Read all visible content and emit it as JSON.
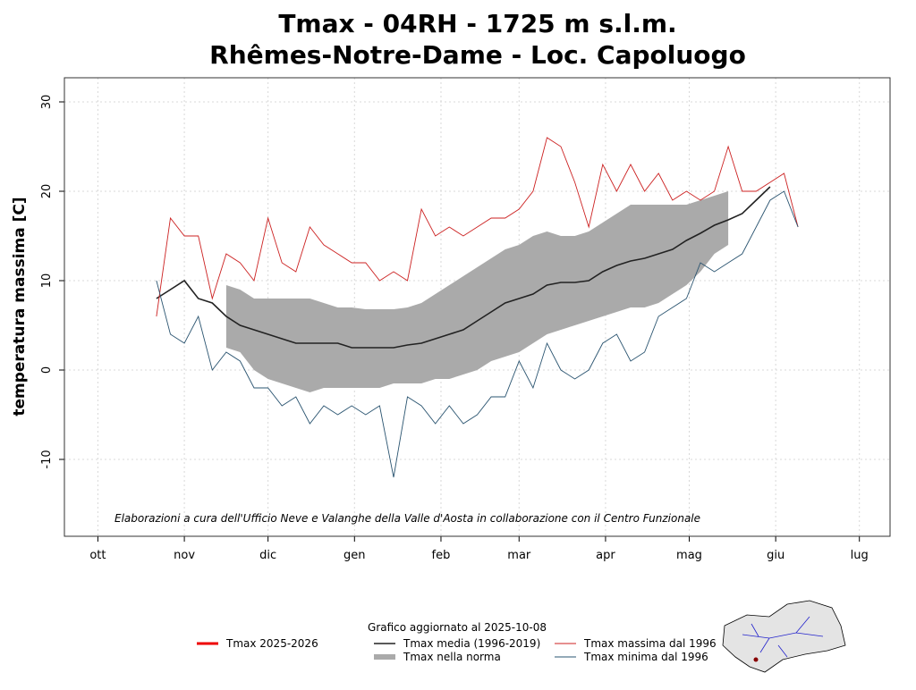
{
  "chart_data": {
    "type": "line",
    "title": "Tmax - 04RH - 1725 m s.l.m.",
    "subtitle": "Rhêmes-Notre-Dame - Loc. Capoluogo",
    "y_label": "temperatura massima [C]",
    "note": "Elaborazioni a cura dell'Ufficio Neve e Valanghe della Valle d'Aosta in collaborazione con il Centro Funzionale",
    "updated": "Grafico aggiornato al 2025-10-08",
    "grid": true,
    "xlim": [
      -12,
      284
    ],
    "xticks": [
      {
        "value": 0,
        "label": "ott"
      },
      {
        "value": 31,
        "label": "nov"
      },
      {
        "value": 61,
        "label": "dic"
      },
      {
        "value": 92,
        "label": "gen"
      },
      {
        "value": 123,
        "label": "feb"
      },
      {
        "value": 151,
        "label": "mar"
      },
      {
        "value": 182,
        "label": "apr"
      },
      {
        "value": 212,
        "label": "mag"
      },
      {
        "value": 243,
        "label": "giu"
      },
      {
        "value": 273,
        "label": "lug"
      }
    ],
    "ylim": [
      -18.6,
      32.7
    ],
    "yticks": [
      -10,
      0,
      10,
      20,
      30
    ],
    "x": [
      21,
      26,
      31,
      36,
      41,
      46,
      51,
      56,
      61,
      66,
      71,
      76,
      81,
      86,
      91,
      96,
      101,
      106,
      111,
      116,
      121,
      126,
      131,
      136,
      141,
      146,
      151,
      156,
      161,
      166,
      171,
      176,
      181,
      186,
      191,
      196,
      201,
      206,
      211,
      216,
      221,
      226,
      231,
      236,
      241,
      246,
      251
    ],
    "series": [
      {
        "name": "Tmax 2025-2026",
        "color": "#ee0000",
        "width": 3,
        "values": [
          null,
          null,
          null,
          null,
          null,
          null,
          null,
          null,
          null,
          null,
          null,
          null,
          null,
          null,
          null,
          null,
          null,
          null,
          null,
          null,
          null,
          null,
          null,
          null,
          null,
          null,
          null,
          null,
          null,
          null,
          null,
          null,
          null,
          null,
          null,
          null,
          null,
          null,
          null,
          null,
          null,
          null,
          null,
          null,
          null,
          null,
          null
        ]
      },
      {
        "name": "Tmax nella norma",
        "color": "#aaaaaa",
        "kind": "band",
        "low": [
          null,
          null,
          null,
          null,
          null,
          2.5,
          2,
          0,
          -1,
          -1.5,
          -2,
          -2.5,
          -2,
          -2,
          -2,
          -2,
          -2,
          -1.5,
          -1.5,
          -1.5,
          -1,
          -1,
          -0.5,
          0,
          1,
          1.5,
          2,
          3,
          4,
          4.5,
          5,
          5.5,
          6,
          6.5,
          7,
          7,
          7.5,
          8.5,
          9.5,
          11,
          13,
          14,
          null,
          null,
          null,
          null,
          null
        ],
        "high": [
          null,
          null,
          null,
          null,
          null,
          9.5,
          9,
          8,
          8,
          8,
          8,
          8,
          7.5,
          7,
          7,
          6.8,
          6.8,
          6.8,
          7,
          7.5,
          8.5,
          9.5,
          10.5,
          11.5,
          12.5,
          13.5,
          14,
          15,
          15.5,
          15,
          15,
          15.5,
          16.5,
          17.5,
          18.5,
          18.5,
          18.5,
          18.5,
          18.5,
          19,
          19.5,
          20,
          null,
          null,
          null,
          null,
          null
        ]
      },
      {
        "name": "Tmax media (1996-2019)",
        "color": "#222222",
        "width": 1.6,
        "values": [
          8,
          9,
          10,
          8,
          7.5,
          6,
          5,
          4.5,
          4,
          3.5,
          3,
          3,
          3,
          3,
          2.5,
          2.5,
          2.5,
          2.5,
          2.8,
          3,
          3.5,
          4,
          4.5,
          5.5,
          6.5,
          7.5,
          8,
          8.5,
          9.5,
          9.8,
          9.8,
          10,
          11,
          11.7,
          12.2,
          12.5,
          13,
          13.5,
          14.5,
          15.3,
          16.2,
          16.8,
          17.5,
          19,
          20.5,
          null,
          null
        ]
      },
      {
        "name": "Tmax massima dal 1996",
        "color": "#cc2222",
        "width": 0.9,
        "values": [
          6,
          17,
          15,
          15,
          8,
          13,
          12,
          10,
          17,
          12,
          11,
          16,
          14,
          13,
          12,
          12,
          10,
          11,
          10,
          18,
          15,
          16,
          15,
          16,
          17,
          17,
          18,
          20,
          26,
          25,
          21,
          16,
          23,
          20,
          23,
          20,
          22,
          19,
          20,
          19,
          20,
          25,
          20,
          20,
          21,
          22,
          16
        ]
      },
      {
        "name": "Tmax minima dal 1996",
        "color": "#2a5470",
        "width": 0.9,
        "values": [
          10,
          4,
          3,
          6,
          0,
          2,
          1,
          -2,
          -2,
          -4,
          -3,
          -6,
          -4,
          -5,
          -4,
          -5,
          -4,
          -12,
          -3,
          -4,
          -6,
          -4,
          -6,
          -5,
          -3,
          -3,
          1,
          -2,
          3,
          0,
          -1,
          0,
          3,
          4,
          1,
          2,
          6,
          7,
          8,
          12,
          11,
          12,
          13,
          16,
          19,
          20,
          16
        ]
      }
    ]
  }
}
